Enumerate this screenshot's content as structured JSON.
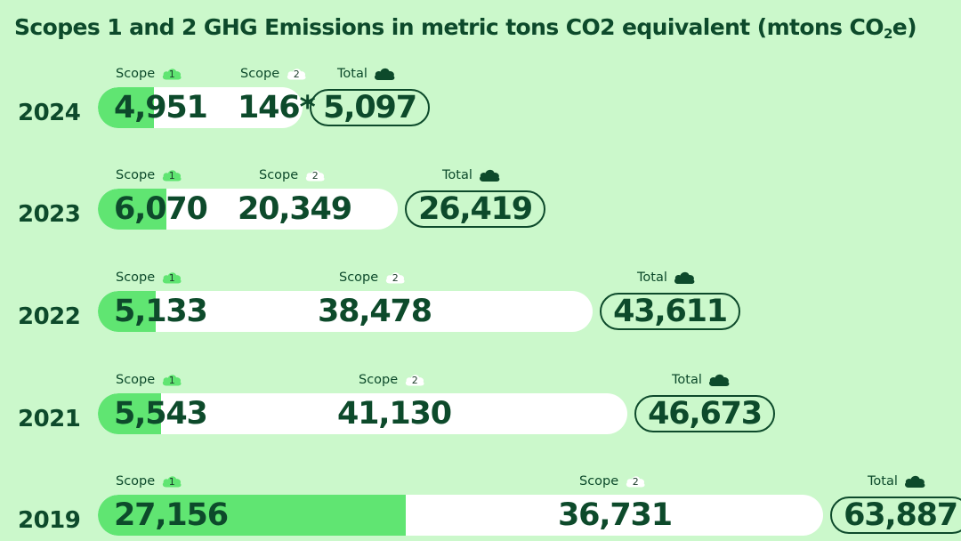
{
  "title": {
    "main": "Scopes 1 and 2 GHG Emissions in metric tons CO2 equivalent (mtons CO",
    "sub": "2",
    "end": "e)"
  },
  "labels": {
    "scope": "Scope",
    "scope1_badge": "1",
    "scope2_badge": "2",
    "total": "Total"
  },
  "colors": {
    "background": "#cbf8cb",
    "scope1": "#60e572",
    "scope2": "#ffffff",
    "text": "#0d4a2b"
  },
  "chart_data": {
    "type": "bar",
    "orientation": "horizontal",
    "stacked": true,
    "title": "Scopes 1 and 2 GHG Emissions in metric tons CO2 equivalent (mtons CO2e)",
    "categories": [
      "2024",
      "2023",
      "2022",
      "2021",
      "2019"
    ],
    "series": [
      {
        "name": "Scope 1",
        "values": [
          4951,
          6070,
          5133,
          5543,
          27156
        ],
        "labels": [
          "4,951",
          "6,070",
          "5,133",
          "5,543",
          "27,156"
        ]
      },
      {
        "name": "Scope 2",
        "values": [
          146,
          20349,
          38478,
          41130,
          36731
        ],
        "labels": [
          "146*",
          "20,349",
          "38,478",
          "41,130",
          "36,731"
        ]
      }
    ],
    "totals": {
      "name": "Total",
      "values": [
        5097,
        26419,
        43611,
        46673,
        63887
      ],
      "labels": [
        "5,097",
        "26,419",
        "43,611",
        "46,673",
        "63,887"
      ]
    }
  }
}
